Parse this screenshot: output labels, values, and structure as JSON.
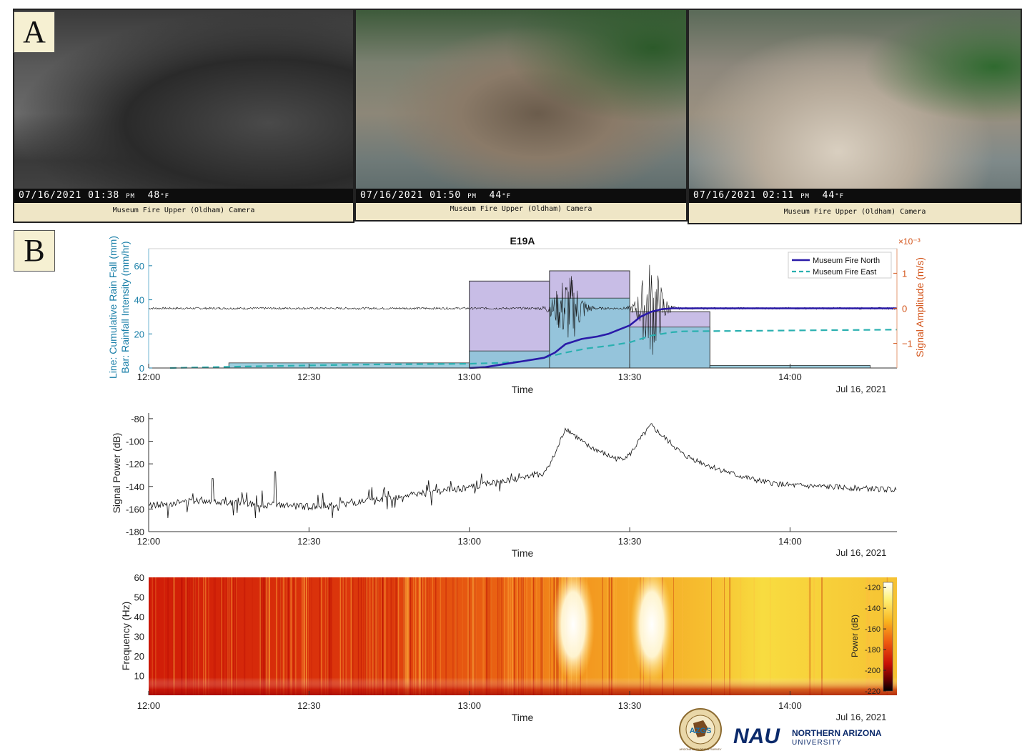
{
  "panels": {
    "a": "A",
    "b": "B"
  },
  "cameras": [
    {
      "date": "07/16/2021",
      "time": "01:38",
      "ampm": "PM",
      "temp": "48",
      "unit": "°F",
      "caption": "Museum Fire Upper (Oldham) Camera"
    },
    {
      "date": "07/16/2021",
      "time": "01:50",
      "ampm": "PM",
      "temp": "44",
      "unit": "°F",
      "caption": "Museum Fire Upper (Oldham) Camera"
    },
    {
      "date": "07/16/2021",
      "time": "02:11",
      "ampm": "PM",
      "temp": "44",
      "unit": "°F",
      "caption": "Museum Fire Upper (Oldham) Camera"
    }
  ],
  "colors": {
    "rain_axis": "#1a7fa8",
    "amp_axis": "#d3541a",
    "north": "#2a1aa8",
    "east": "#2ab0b0"
  },
  "chart_data": [
    {
      "type": "bar+line",
      "title": "E19A",
      "xlabel": "Time",
      "date_label": "Jul 16, 2021",
      "ylabel_left_line1": "Line: Cumulative Rain Fall (mm)",
      "ylabel_left_line2": "Bar: Rainfall Intensity (mm/hr)",
      "ylabel_right": "Signal Amplitude (m/s)",
      "right_scale": "×10⁻³",
      "x_ticks": [
        "12:00",
        "12:30",
        "13:00",
        "13:30",
        "14:00"
      ],
      "x_range_min": [
        0,
        140
      ],
      "ylim_left": [
        0,
        70
      ],
      "y_ticks_left": [
        0,
        20,
        40,
        60
      ],
      "ylim_right": [
        -1.7,
        1.7
      ],
      "y_ticks_right": [
        -1,
        0,
        1
      ],
      "legend": [
        "Museum Fire North",
        "Museum Fire East"
      ],
      "bars_museum_fire_north": [
        {
          "start_min": 60,
          "end_min": 75,
          "value": 51
        },
        {
          "start_min": 75,
          "end_min": 90,
          "value": 57
        },
        {
          "start_min": 90,
          "end_min": 105,
          "value": 33
        }
      ],
      "bars_museum_fire_east": [
        {
          "start_min": 15,
          "end_min": 60,
          "value": 3
        },
        {
          "start_min": 60,
          "end_min": 75,
          "value": 10
        },
        {
          "start_min": 75,
          "end_min": 90,
          "value": 41
        },
        {
          "start_min": 90,
          "end_min": 105,
          "value": 24
        },
        {
          "start_min": 105,
          "end_min": 135,
          "value": 1.5
        }
      ],
      "series": [
        {
          "name": "Museum Fire North",
          "x_min": [
            60,
            63,
            66,
            70,
            74,
            76,
            78,
            81,
            84,
            86,
            88,
            90,
            92,
            94,
            96,
            98,
            100,
            140
          ],
          "values": [
            0,
            0.5,
            2,
            4,
            6,
            9,
            14,
            17,
            18.5,
            20,
            22.5,
            25,
            30,
            33,
            34.5,
            35,
            35,
            35
          ]
        },
        {
          "name": "Museum Fire East",
          "x_min": [
            4,
            20,
            40,
            60,
            66,
            70,
            74,
            78,
            82,
            86,
            90,
            94,
            98,
            100,
            140
          ],
          "values": [
            0,
            1,
            2,
            2.5,
            3,
            4,
            6,
            9,
            11.5,
            13,
            15,
            19,
            21,
            21.5,
            22.5
          ]
        }
      ]
    },
    {
      "type": "line",
      "xlabel": "Time",
      "ylabel": "Signal Power (dB)",
      "date_label": "Jul 16, 2021",
      "x_ticks": [
        "12:00",
        "12:30",
        "13:00",
        "13:30",
        "14:00"
      ],
      "ylim": [
        -180,
        -75
      ],
      "y_ticks": [
        -180,
        -160,
        -140,
        -120,
        -100,
        -80
      ],
      "envelope_x_min": [
        0,
        10,
        20,
        30,
        40,
        50,
        60,
        65,
        70,
        74,
        76,
        78,
        80,
        82,
        84,
        86,
        88,
        90,
        92,
        94,
        96,
        98,
        100,
        105,
        110,
        115,
        120,
        130,
        140
      ],
      "envelope_db": [
        -157,
        -152,
        -156,
        -158,
        -154,
        -147,
        -141,
        -137,
        -132,
        -128,
        -112,
        -88,
        -96,
        -104,
        -108,
        -113,
        -116,
        -112,
        -98,
        -86,
        -95,
        -103,
        -112,
        -122,
        -130,
        -136,
        -139,
        -141,
        -143
      ]
    },
    {
      "type": "heatmap",
      "xlabel": "Time",
      "ylabel": "Frequency (Hz)",
      "date_label": "Jul 16, 2021",
      "x_ticks": [
        "12:00",
        "12:30",
        "13:00",
        "13:30",
        "14:00"
      ],
      "y_ticks": [
        10,
        20,
        30,
        40,
        50,
        60
      ],
      "ylim": [
        0,
        60
      ],
      "colorbar_label": "Power (dB)",
      "colorbar_ticks": [
        -120,
        -140,
        -160,
        -180,
        -200,
        -220
      ],
      "colorbar_range": [
        -220,
        -115
      ]
    }
  ],
  "logos": {
    "azgs_text": "AZGS",
    "azgs_ring": "ARIZONA GEOLOGICAL SURVEY",
    "nau_mark": "NAU",
    "nau_line1": "NORTHERN ARIZONA",
    "nau_line2": "UNIVERSITY"
  }
}
